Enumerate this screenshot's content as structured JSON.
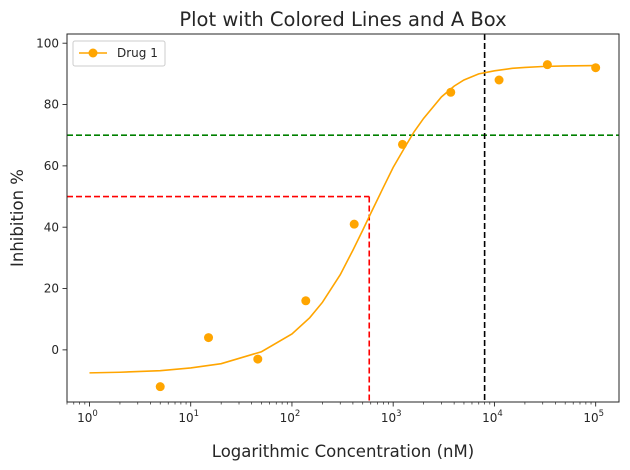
{
  "chart_data": {
    "type": "scatter",
    "title": "Plot with Colored Lines and A Box",
    "xlabel": "Logarithmic Concentration (nM)",
    "ylabel": "Inhibition %",
    "xscale": "log",
    "xlim": [
      0.6,
      170000
    ],
    "ylim": [
      -17,
      103
    ],
    "xticks": [
      {
        "value": 1,
        "base": "10",
        "exp": "0"
      },
      {
        "value": 10,
        "base": "10",
        "exp": "1"
      },
      {
        "value": 100,
        "base": "10",
        "exp": "2"
      },
      {
        "value": 1000,
        "base": "10",
        "exp": "3"
      },
      {
        "value": 10000,
        "base": "10",
        "exp": "4"
      },
      {
        "value": 100000,
        "base": "10",
        "exp": "5"
      }
    ],
    "yticks": [
      "0",
      "20",
      "40",
      "60",
      "80",
      "100"
    ],
    "grid": false,
    "legend_position": "top-left",
    "series": [
      {
        "name": "Drug 1",
        "color": "#FFA500",
        "points": [
          {
            "x": 5,
            "y": -12
          },
          {
            "x": 15,
            "y": 4
          },
          {
            "x": 46,
            "y": -3
          },
          {
            "x": 137,
            "y": 16
          },
          {
            "x": 412,
            "y": 41
          },
          {
            "x": 1235,
            "y": 67
          },
          {
            "x": 3704,
            "y": 84
          },
          {
            "x": 11111,
            "y": 88
          },
          {
            "x": 33333,
            "y": 93
          },
          {
            "x": 100000,
            "y": 92
          }
        ],
        "fit_curve": {
          "x": [
            1,
            2,
            5,
            10,
            20,
            50,
            100,
            150,
            200,
            300,
            400,
            500,
            600,
            800,
            1000,
            1300,
            1600,
            2000,
            3000,
            4000,
            5000,
            7000,
            10000,
            15000,
            20000,
            30000,
            50000,
            100000
          ],
          "y": [
            -7.5,
            -7.3,
            -6.8,
            -5.9,
            -4.5,
            -0.6,
            5.2,
            10.5,
            15.5,
            24.5,
            32.5,
            39.0,
            44.5,
            53.0,
            59.5,
            66.0,
            71.0,
            75.5,
            82.5,
            86.0,
            88.0,
            90.0,
            91.0,
            91.8,
            92.1,
            92.4,
            92.6,
            92.7
          ]
        }
      }
    ],
    "reference_lines": [
      {
        "orientation": "horizontal",
        "y": 70,
        "color": "#008000",
        "style": "dashed"
      },
      {
        "orientation": "vertical",
        "x": 8000,
        "color": "#000000",
        "style": "dashed"
      },
      {
        "orientation": "horizontal",
        "y": 50,
        "x_end": 580,
        "color": "#FF0000",
        "style": "dashed"
      },
      {
        "orientation": "vertical",
        "x": 580,
        "y_end": 50,
        "color": "#FF0000",
        "style": "dashed"
      }
    ]
  }
}
